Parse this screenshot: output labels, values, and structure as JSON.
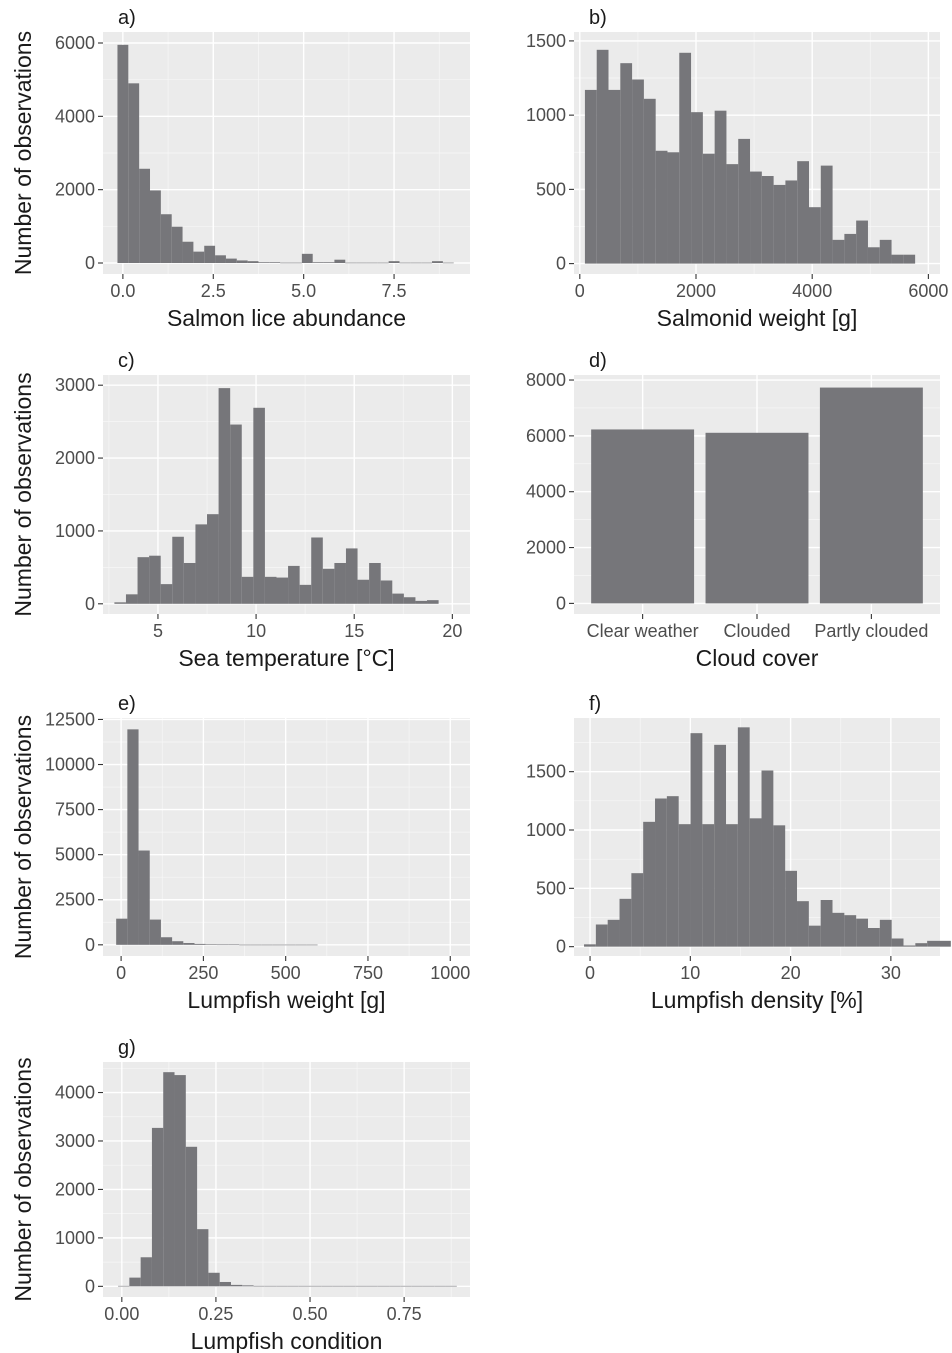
{
  "figure": {
    "background": "#ffffff",
    "panel_background": "#ebebeb",
    "bar_color": "#76767a",
    "grid_color": "#ffffff"
  },
  "chart_data": [
    {
      "tag": "a)",
      "type": "bar",
      "xlabel": "Salmon lice abundance",
      "ylabel": "Number of observations",
      "xlim": [
        -0.55,
        9.6
      ],
      "ylim": [
        -300,
        6300
      ],
      "xticks": [
        0,
        2.5,
        5,
        7.5
      ],
      "xtick_labels": [
        "0.0",
        "2.5",
        "5.0",
        "7.5"
      ],
      "yticks": [
        0,
        2000,
        4000,
        6000
      ],
      "ytick_labels": [
        "0",
        "2000",
        "4000",
        "6000"
      ],
      "bin_start": -0.15,
      "bin_width": 0.3,
      "values": [
        5950,
        4900,
        2570,
        1980,
        1330,
        990,
        580,
        310,
        470,
        210,
        120,
        70,
        50,
        20,
        20,
        10,
        10,
        250,
        20,
        20,
        90,
        10,
        10,
        10,
        10,
        50,
        10,
        10,
        10,
        50,
        10
      ]
    },
    {
      "tag": "b)",
      "type": "bar",
      "xlabel": "Salmonid weight [g]",
      "ylabel": "",
      "xlim": [
        -100,
        6200
      ],
      "ylim": [
        -70,
        1560
      ],
      "xticks": [
        0,
        2000,
        4000,
        6000
      ],
      "xtick_labels": [
        "0",
        "2000",
        "4000",
        "6000"
      ],
      "yticks": [
        0,
        500,
        1000,
        1500
      ],
      "ytick_labels": [
        "0",
        "500",
        "1000",
        "1500"
      ],
      "bin_start": 88,
      "bin_width": 203,
      "values": [
        1170,
        1440,
        1170,
        1350,
        1240,
        1110,
        760,
        750,
        1420,
        1020,
        740,
        1030,
        670,
        840,
        620,
        590,
        530,
        560,
        690,
        380,
        660,
        160,
        200,
        290,
        110,
        160,
        60,
        60
      ]
    },
    {
      "tag": "c)",
      "type": "bar",
      "xlabel": "Sea temperature [°C]",
      "ylabel": "Number of observations",
      "xlim": [
        2.2,
        20.9
      ],
      "ylim": [
        -140,
        3140
      ],
      "xticks": [
        5,
        10,
        15,
        20
      ],
      "xtick_labels": [
        "5",
        "10",
        "15",
        "20"
      ],
      "yticks": [
        0,
        1000,
        2000,
        3000
      ],
      "ytick_labels": [
        "0",
        "1000",
        "2000",
        "3000"
      ],
      "bin_start": 2.78,
      "bin_width": 0.59,
      "values": [
        20,
        130,
        640,
        660,
        270,
        920,
        560,
        1090,
        1230,
        2960,
        2460,
        370,
        2690,
        370,
        360,
        520,
        260,
        910,
        480,
        560,
        760,
        330,
        560,
        320,
        140,
        90,
        40,
        50
      ]
    },
    {
      "tag": "d)",
      "type": "bar",
      "xlabel": "Cloud cover",
      "ylabel": "",
      "ylim": [
        -380,
        8180
      ],
      "categories": [
        "Clear weather",
        "Clouded",
        "Partly clouded"
      ],
      "values": [
        6230,
        6110,
        7730
      ],
      "yticks": [
        0,
        2000,
        4000,
        6000,
        8000
      ],
      "ytick_labels": [
        "0",
        "2000",
        "4000",
        "6000",
        "8000"
      ]
    },
    {
      "tag": "e)",
      "type": "bar",
      "xlabel": "Lumpfish weight [g]",
      "ylabel": "Number of observations",
      "xlim": [
        -55,
        1060
      ],
      "ylim": [
        -620,
        12580
      ],
      "xticks": [
        0,
        250,
        500,
        750,
        1000
      ],
      "xtick_labels": [
        "0",
        "250",
        "500",
        "750",
        "1000"
      ],
      "yticks": [
        0,
        2500,
        5000,
        7500,
        10000,
        12500
      ],
      "ytick_labels": [
        "0",
        "2500",
        "5000",
        "7500",
        "10000",
        "12500"
      ],
      "bin_start": -15,
      "bin_width": 34,
      "values": [
        1450,
        11950,
        5230,
        1400,
        420,
        200,
        100,
        50,
        30,
        20,
        20,
        10,
        10,
        10,
        10,
        10,
        10,
        10,
        0,
        0,
        0,
        0,
        0,
        0,
        0,
        0,
        0,
        0,
        0,
        0
      ]
    },
    {
      "tag": "f)",
      "type": "bar",
      "xlabel": "Lumpfish density [%]",
      "ylabel": "",
      "xlim": [
        -1.6,
        34.9
      ],
      "ylim": [
        -80,
        1960
      ],
      "xticks": [
        0,
        10,
        20,
        30
      ],
      "xtick_labels": [
        "0",
        "10",
        "20",
        "30"
      ],
      "yticks": [
        0,
        500,
        1000,
        1500
      ],
      "ytick_labels": [
        "0",
        "500",
        "1000",
        "1500"
      ],
      "bin_start": -0.6,
      "bin_width": 1.18,
      "values": [
        20,
        190,
        230,
        410,
        630,
        1070,
        1270,
        1290,
        1050,
        1830,
        1050,
        1730,
        1050,
        1880,
        1100,
        1510,
        1040,
        650,
        390,
        180,
        400,
        290,
        270,
        240,
        160,
        230,
        70,
        10,
        30,
        50,
        50
      ]
    },
    {
      "tag": "g)",
      "type": "bar",
      "xlabel": "Lumpfish condition",
      "ylabel": "Number of observations",
      "xlim": [
        -0.05,
        0.925
      ],
      "ylim": [
        -220,
        4630
      ],
      "xticks": [
        0,
        0.25,
        0.5,
        0.75
      ],
      "xtick_labels": [
        "0.00",
        "0.25",
        "0.50",
        "0.75"
      ],
      "yticks": [
        0,
        1000,
        2000,
        3000,
        4000
      ],
      "ytick_labels": [
        "0",
        "1000",
        "2000",
        "3000",
        "4000"
      ],
      "bin_start": -0.01,
      "bin_width": 0.03,
      "values": [
        10,
        180,
        600,
        3270,
        4420,
        4360,
        2880,
        1180,
        280,
        90,
        30,
        20,
        10,
        10,
        10,
        10,
        10,
        10,
        10,
        10,
        10,
        10,
        10,
        10,
        10,
        10,
        10,
        10,
        10,
        10
      ]
    }
  ]
}
